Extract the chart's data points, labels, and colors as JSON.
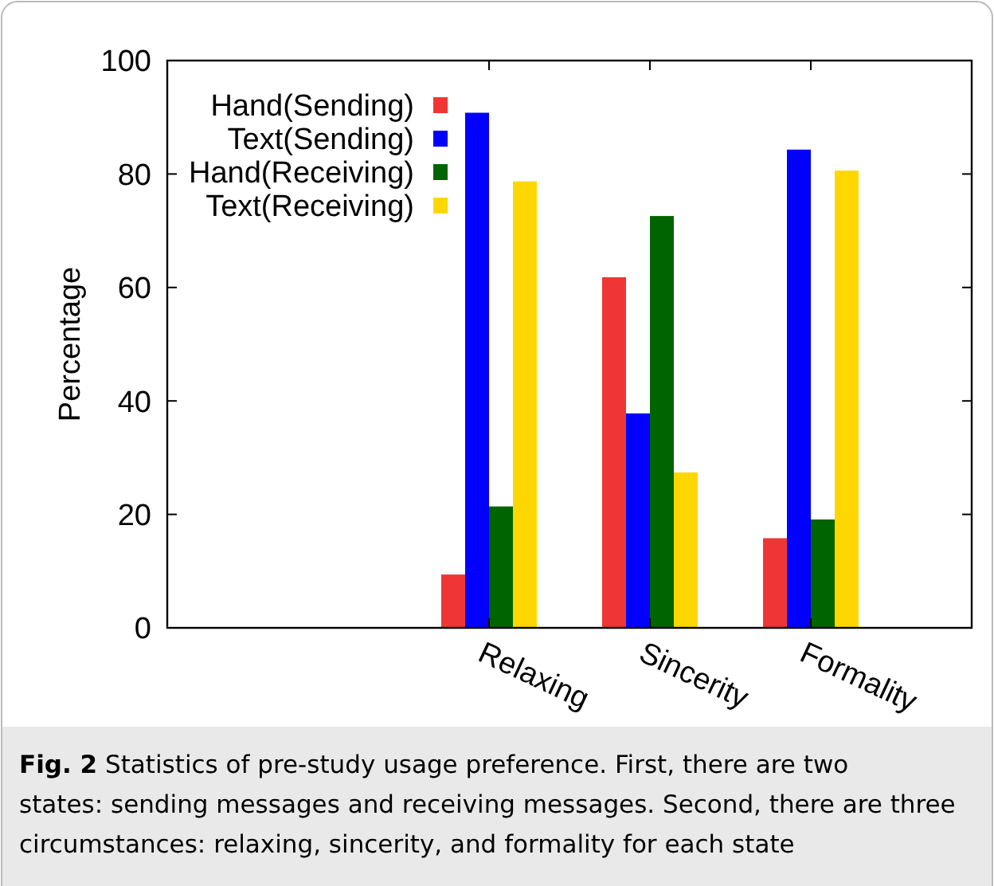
{
  "chart_data": {
    "type": "bar",
    "ylabel": "Percentage",
    "categories": [
      null,
      null,
      "Relaxing",
      "Sincerity",
      "Formality"
    ],
    "series": [
      {
        "name": "Hand(Sending)",
        "color": "#f03535",
        "values": [
          null,
          null,
          9.4,
          61.8,
          15.8
        ]
      },
      {
        "name": "Text(Sending)",
        "color": "#0000ff",
        "values": [
          null,
          null,
          90.8,
          37.8,
          84.3
        ]
      },
      {
        "name": "Hand(Receiving)",
        "color": "#006400",
        "values": [
          null,
          null,
          21.4,
          72.6,
          19.1
        ]
      },
      {
        "name": "Text(Receiving)",
        "color": "#ffd700",
        "values": [
          null,
          null,
          78.7,
          27.4,
          80.6
        ]
      }
    ],
    "ylim": [
      0,
      100
    ],
    "yticks": [
      0,
      20,
      40,
      60,
      80,
      100
    ],
    "grid": false,
    "legend": "top left",
    "annotations": [
      "Fig. 2 Statistics of pre-study usage preference. First, there are two states: sending messages and receiving messages. Second, there are three circumstances: relaxing, sincerity, and formality for each state"
    ]
  }
}
